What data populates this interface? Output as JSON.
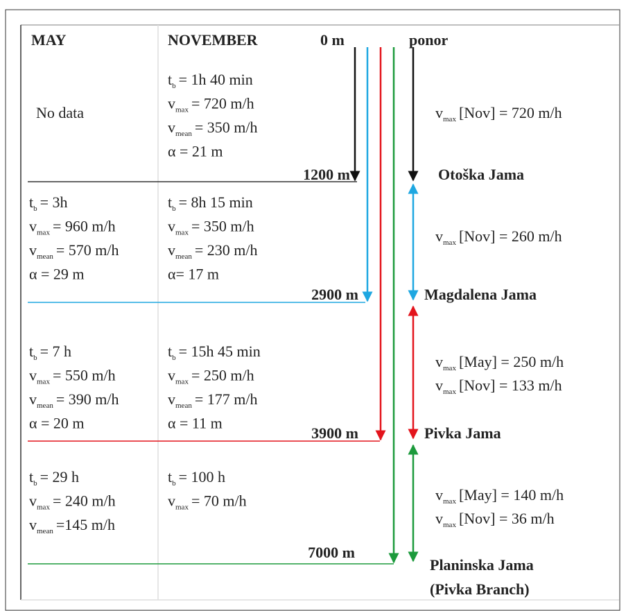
{
  "header": {
    "may": "MAY",
    "november": "NOVEMBER",
    "start": "0 m",
    "source": "ponor"
  },
  "segments": [
    {
      "may": [
        {
          "text": "No data"
        }
      ],
      "november": [
        {
          "base": "t",
          "sub": "b",
          "text": "= 1h 40 min"
        },
        {
          "base": "v",
          "sub": "max",
          "text": "= 720 m/h"
        },
        {
          "base": "v",
          "sub": "mean",
          "text": "= 350 m/h"
        },
        {
          "text": "α = 21 m"
        }
      ],
      "distance": "1200 m",
      "velocity": [
        {
          "base": "v",
          "sub": "max",
          "text": "[Nov] = 720 m/h"
        }
      ],
      "station": [
        "Otoška Jama"
      ]
    },
    {
      "may": [
        {
          "base": "t",
          "sub": "b",
          "text": "= 3h"
        },
        {
          "base": "v",
          "sub": "max",
          "text": "= 960 m/h"
        },
        {
          "base": "v",
          "sub": "mean",
          "text": "= 570 m/h"
        },
        {
          "text": "α = 29 m"
        }
      ],
      "november": [
        {
          "base": "t",
          "sub": "b",
          "text": "= 8h 15 min"
        },
        {
          "base": "v",
          "sub": "max",
          "text": "= 350 m/h"
        },
        {
          "base": "v",
          "sub": "mean",
          "text": "= 230 m/h"
        },
        {
          "text": "α= 17  m"
        }
      ],
      "distance": "2900 m",
      "velocity": [
        {
          "base": "v",
          "sub": "max",
          "text": "[Nov] = 260 m/h"
        }
      ],
      "station": [
        "Magdalena Jama"
      ]
    },
    {
      "may": [
        {
          "base": "t",
          "sub": "b",
          "text": "= 7 h"
        },
        {
          "base": "v",
          "sub": "max",
          "text": "= 550 m/h"
        },
        {
          "base": "v",
          "sub": "mean",
          "text": "= 390 m/h"
        },
        {
          "text": "α = 20 m"
        }
      ],
      "november": [
        {
          "base": "t",
          "sub": "b",
          "text": "= 15h 45 min"
        },
        {
          "base": "v",
          "sub": "max",
          "text": "= 250 m/h"
        },
        {
          "base": "v",
          "sub": "mean",
          "text": "= 177 m/h"
        },
        {
          "text": "α = 11  m"
        }
      ],
      "distance": "3900 m",
      "velocity": [
        {
          "base": "v",
          "sub": "max",
          "text": "[May] = 250 m/h"
        },
        {
          "base": "v",
          "sub": "max",
          "text": "[Nov] = 133 m/h"
        }
      ],
      "station": [
        "Pivka Jama"
      ]
    },
    {
      "may": [
        {
          "base": "t",
          "sub": "b",
          "text": "= 29 h"
        },
        {
          "base": "v",
          "sub": "max",
          "text": "= 240 m/h"
        },
        {
          "base": "v",
          "sub": "mean",
          "text": "=145 m/h"
        }
      ],
      "november": [
        {
          "base": "t",
          "sub": "b",
          "text": "= 100 h"
        },
        {
          "base": "v",
          "sub": "max",
          "text": "= 70 m/h"
        }
      ],
      "distance": "7000 m",
      "velocity": [
        {
          "base": "v",
          "sub": "max",
          "text": "[May] = 140 m/h"
        },
        {
          "base": "v",
          "sub": "max",
          "text": "[Nov] = 36 m/h"
        }
      ],
      "station": [
        "Planinska Jama",
        "(Pivka Branch)"
      ]
    }
  ]
}
